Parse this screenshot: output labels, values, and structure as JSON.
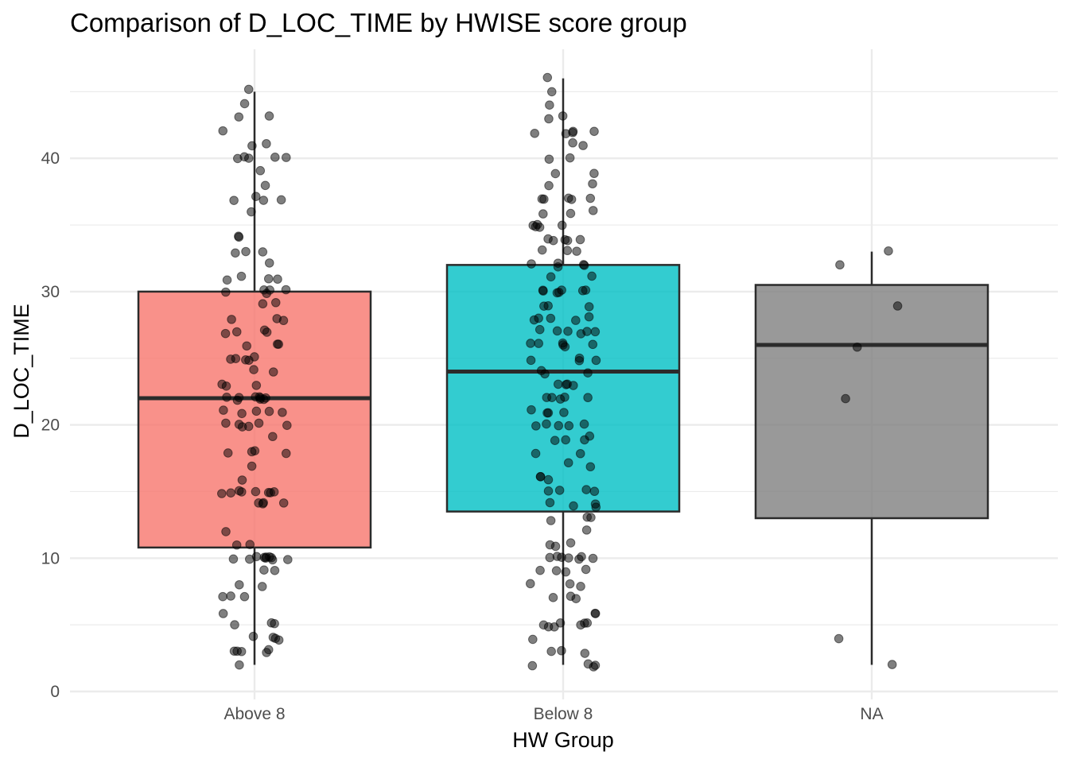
{
  "chart_data": {
    "type": "boxplot",
    "title": "Comparison of D_LOC_TIME by HWISE score group",
    "xlabel": "HW Group",
    "ylabel": "D_LOC_TIME",
    "categories": [
      "Above 8",
      "Below 8",
      "NA"
    ],
    "ylim": [
      0,
      48
    ],
    "yticks": [
      0,
      10,
      20,
      30,
      40
    ],
    "grid": true,
    "legend": "none",
    "colors": {
      "Above 8": "#F8766D",
      "Below 8": "#00BFC4",
      "NA": "#7F7F7F",
      "box_line": "#2b2b2b",
      "point": "#000000",
      "grid": "#ebebeb"
    },
    "boxes": [
      {
        "category": "Above 8",
        "min": 2,
        "q1": 10.8,
        "median": 22,
        "q3": 30,
        "max": 45
      },
      {
        "category": "Below 8",
        "min": 2,
        "q1": 13.5,
        "median": 24,
        "q3": 32,
        "max": 46
      },
      {
        "category": "NA",
        "min": 2,
        "q1": 13,
        "median": 26,
        "q3": 30.5,
        "max": 33
      }
    ],
    "points": [
      {
        "category": "Above 8",
        "values": [
          45,
          44,
          43,
          43,
          42,
          41,
          41,
          40,
          40,
          40,
          40,
          40,
          39,
          38,
          37,
          37,
          37,
          37,
          36,
          34,
          34,
          33,
          33,
          33,
          32,
          31,
          31,
          31,
          31,
          30,
          30,
          30,
          30,
          30,
          29,
          29,
          28,
          28,
          28,
          27,
          27,
          27,
          27,
          26,
          26,
          26,
          25,
          25,
          25,
          25,
          25,
          24,
          24,
          23,
          23,
          23,
          22,
          22,
          22,
          22,
          22,
          22,
          22,
          22,
          22,
          21,
          21,
          21,
          21,
          21,
          20,
          20,
          20,
          20,
          20,
          20,
          19,
          18,
          18,
          18,
          18,
          17,
          16,
          15,
          15,
          15,
          15,
          15,
          15,
          15,
          15,
          14,
          14,
          14,
          14,
          12,
          11,
          11,
          10,
          10,
          10,
          10,
          10,
          10,
          10,
          10,
          10,
          10,
          9,
          9,
          8,
          8,
          7,
          7,
          7,
          6,
          5,
          5,
          5,
          4,
          4,
          4,
          4,
          3,
          3,
          3,
          3,
          3,
          2
        ]
      },
      {
        "category": "Below 8",
        "values": [
          46,
          45,
          44,
          43,
          43,
          42,
          42,
          42,
          42,
          42,
          41,
          41,
          40,
          40,
          39,
          39,
          38,
          38,
          37,
          37,
          37,
          37,
          37,
          36,
          36,
          36,
          35,
          35,
          35,
          35,
          35,
          34,
          34,
          34,
          34,
          34,
          33,
          33,
          33,
          32,
          32,
          32,
          32,
          32,
          31,
          31,
          30,
          30,
          30,
          30,
          30,
          30,
          30,
          29,
          29,
          29,
          28,
          28,
          28,
          28,
          28,
          27,
          27,
          27,
          27,
          27,
          27,
          26,
          26,
          26,
          26,
          26,
          26,
          25,
          25,
          25,
          25,
          24,
          24,
          24,
          23,
          23,
          23,
          23,
          22,
          22,
          22,
          22,
          22,
          21,
          21,
          21,
          21,
          20,
          20,
          20,
          20,
          20,
          19,
          19,
          19,
          19,
          18,
          18,
          17,
          17,
          16,
          16,
          16,
          15,
          15,
          15,
          15,
          14,
          14,
          14,
          14,
          13,
          13,
          13,
          12,
          11,
          11,
          11,
          10,
          10,
          10,
          10,
          10,
          10,
          10,
          9,
          9,
          9,
          9,
          8,
          8,
          8,
          7,
          7,
          7,
          6,
          6,
          5,
          5,
          5,
          5,
          5,
          5,
          5,
          4,
          3,
          3,
          3,
          2,
          2,
          2,
          2
        ]
      },
      {
        "category": "NA",
        "values": [
          33,
          32,
          29,
          26,
          22,
          4,
          2
        ]
      }
    ]
  }
}
